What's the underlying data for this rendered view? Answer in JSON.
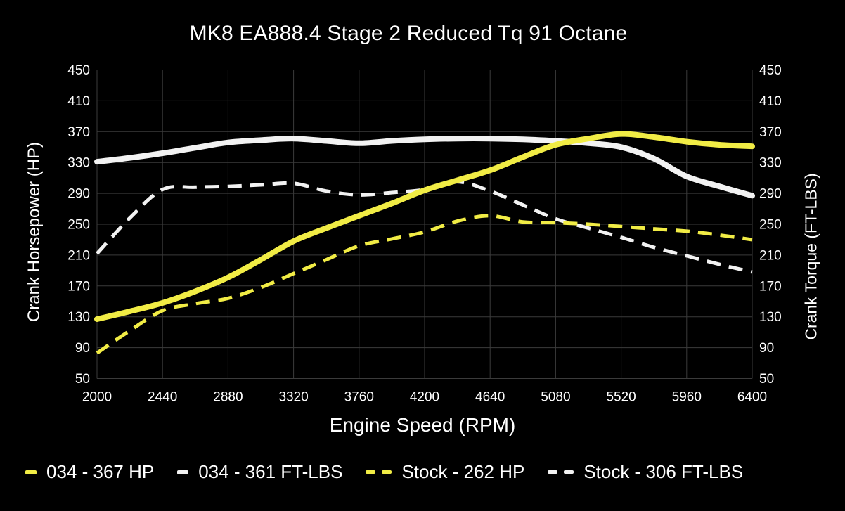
{
  "title": "MK8 EA888.4 Stage 2 Reduced Tq 91 Octane",
  "axes": {
    "left_label": "Crank Horsepower (HP)",
    "right_label": "Crank Torque (FT-LBS)",
    "x_label": "Engine Speed (RPM)"
  },
  "colors": {
    "background": "#000000",
    "grid": "#3b3b3b",
    "text": "#ffffff",
    "yellow": "#f1ec45",
    "white_line": "#f2f2f2"
  },
  "legend": [
    {
      "label": "034 - 367 HP",
      "color_key": "yellow",
      "dashed": false
    },
    {
      "label": "034 - 361 FT-LBS",
      "color_key": "white_line",
      "dashed": false
    },
    {
      "label": "Stock - 262 HP",
      "color_key": "yellow",
      "dashed": true
    },
    {
      "label": "Stock - 306 FT-LBS",
      "color_key": "white_line",
      "dashed": true
    }
  ],
  "chart_data": {
    "type": "line",
    "title": "MK8 EA888.4 Stage 2 Reduced Tq 91 Octane",
    "xlabel": "Engine Speed (RPM)",
    "ylabel_left": "Crank Horsepower (HP)",
    "ylabel_right": "Crank Torque (FT-LBS)",
    "xlim": [
      2000,
      6400
    ],
    "ylim": [
      50,
      450
    ],
    "x_ticks": [
      2000,
      2440,
      2880,
      3320,
      3760,
      4200,
      4640,
      5080,
      5520,
      5960,
      6400
    ],
    "y_ticks": [
      450,
      410,
      370,
      330,
      290,
      250,
      210,
      170,
      130,
      90,
      50
    ],
    "grid": true,
    "legend_position": "bottom",
    "x": [
      2000,
      2220,
      2440,
      2660,
      2880,
      3100,
      3320,
      3540,
      3760,
      3980,
      4200,
      4420,
      4640,
      4860,
      5080,
      5300,
      5520,
      5740,
      5960,
      6180,
      6400
    ],
    "series": [
      {
        "name": "034 - 367 HP",
        "unit": "HP",
        "style": "solid",
        "color": "#f1ec45",
        "width": 8,
        "values": [
          127,
          137,
          148,
          163,
          181,
          204,
          228,
          245,
          261,
          277,
          294,
          307,
          320,
          337,
          353,
          361,
          367,
          363,
          357,
          353,
          351
        ]
      },
      {
        "name": "034 - 361 FT-LBS",
        "unit": "FT-LBS",
        "style": "solid",
        "color": "#f2f2f2",
        "width": 8,
        "values": [
          331,
          336,
          342,
          349,
          356,
          359,
          361,
          358,
          355,
          358,
          360,
          361,
          361,
          360,
          358,
          355,
          350,
          335,
          312,
          299,
          287
        ]
      },
      {
        "name": "Stock - 262 HP",
        "unit": "HP",
        "style": "dashed",
        "color": "#f1ec45",
        "width": 5,
        "values": [
          83,
          112,
          138,
          147,
          154,
          168,
          186,
          204,
          222,
          231,
          240,
          254,
          261,
          253,
          252,
          250,
          247,
          244,
          241,
          236,
          230
        ]
      },
      {
        "name": "Stock - 306 FT-LBS",
        "unit": "FT-LBS",
        "style": "dashed",
        "color": "#f2f2f2",
        "width": 5,
        "values": [
          212,
          258,
          295,
          298,
          299,
          301,
          303,
          293,
          288,
          291,
          295,
          305,
          293,
          275,
          257,
          245,
          233,
          220,
          209,
          198,
          188
        ]
      }
    ]
  }
}
